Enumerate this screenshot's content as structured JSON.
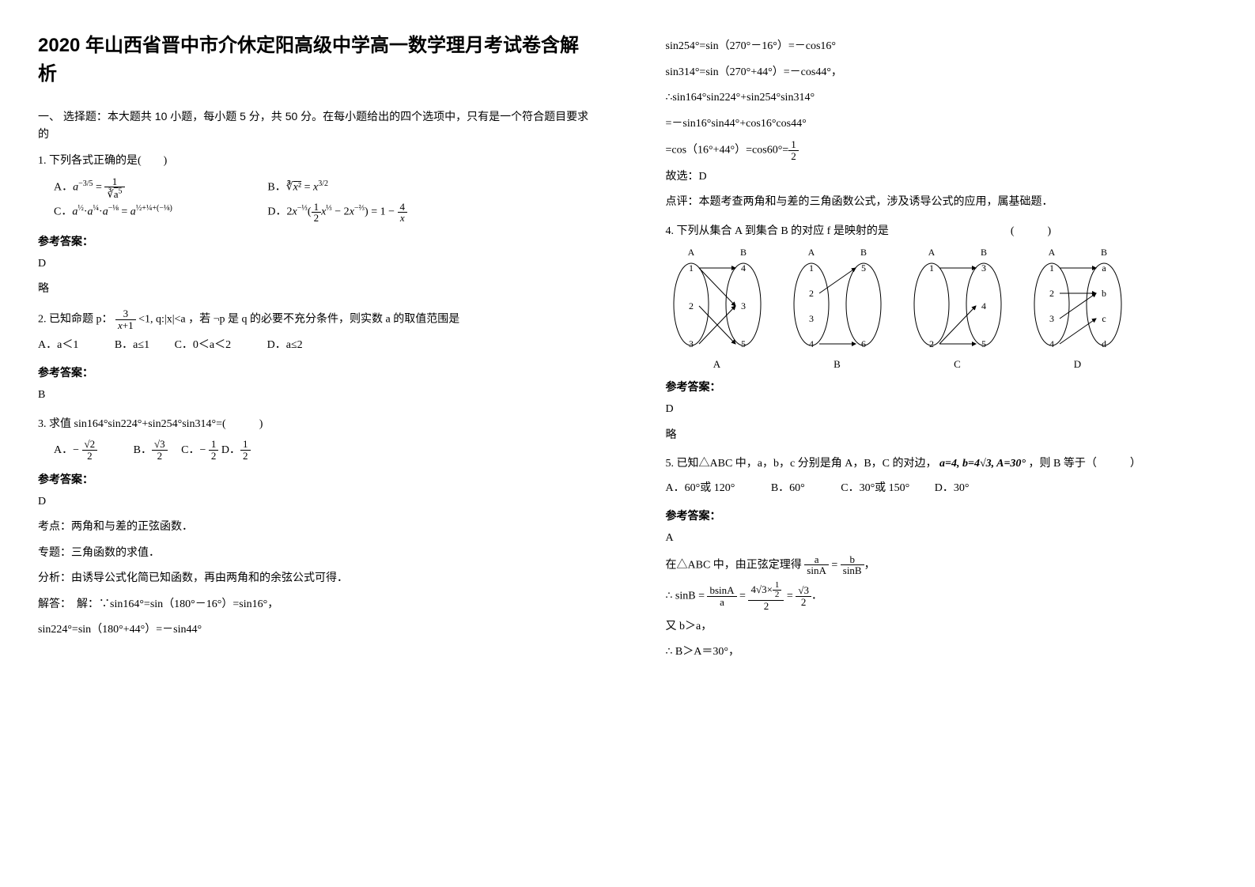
{
  "title": "2020 年山西省晋中市介休定阳高级中学高一数学理月考试卷含解析",
  "section1": "一、 选择题：本大题共 10 小题，每小题 5 分，共 50 分。在每小题给出的四个选项中，只有是一个符合题目要求的",
  "q1": {
    "stem": "1. 下列各式正确的是(　　)",
    "optA": "a^{-3/5} = 1 / ∛(a^5)",
    "optB": "∛(x²) = x^{3/2}",
    "optC": "a^{1/2}·a^{1/4}·a^{-1/8} = a^{1/2+1/4+(-1/8)}",
    "optD": "2x^{-1/3}(½x^{1/3} − 2x^{-2/3}) = 1 − 4/x",
    "answer_label": "参考答案：",
    "answer": "D",
    "expl": "略"
  },
  "q2": {
    "stem_pre": "2. 已知命题 p：",
    "stem_mid": "<1, q:|x|<a",
    "stem_post": "，若 ¬p 是 q 的必要不充分条件，则实数 a 的取值范围是",
    "optA": "A．a＜1",
    "optB": "B．a≤1",
    "optC": "C．0＜a＜2",
    "optD": "D．a≤2",
    "answer_label": "参考答案：",
    "answer": "B"
  },
  "q3": {
    "stem": "3. 求值 sin164°sin224°+sin254°sin314°=(　　　)",
    "optA": "A．−√2/2",
    "optB": "B．√3/2",
    "optC": "C．−1/2",
    "optD": "D．1/2",
    "answer_label": "参考答案：",
    "answer": "D",
    "kaodian_label": "考点：",
    "kaodian": "两角和与差的正弦函数．",
    "zhuanti_label": "专题：",
    "zhuanti": "三角函数的求值．",
    "fenxi_label": "分析：",
    "fenxi": "由诱导公式化简已知函数，再由两角和的余弦公式可得．",
    "jieda_label": "解答：",
    "jieda_lead": "解：∵sin164°=sin（180°－16°）=sin16°，",
    "line2": "sin224°=sin（180°+44°）=－sin44°",
    "line3": "sin254°=sin（270°－16°）=－cos16°",
    "line4": "sin314°=sin（270°+44°）=－cos44°，",
    "line5": "∴sin164°sin224°+sin254°sin314°",
    "line6": "=－sin16°sin44°+cos16°cos44°",
    "line7_pre": "=cos（16°+44°）=cos60°=",
    "guxuan": "故选：D",
    "dianping_label": "点评：",
    "dianping": "本题考查两角和与差的三角函数公式，涉及诱导公式的应用，属基础题．"
  },
  "q4": {
    "stem": "4. 下列从集合 A 到集合 B 的对应 f 是映射的是　　　　　　　　　　　(　　　)",
    "labels": {
      "A": "A",
      "B": "B",
      "C": "C",
      "D": "D"
    },
    "answer_label": "参考答案：",
    "answer": "D",
    "expl": "略",
    "diagrams": {
      "A": {
        "left": [
          "1",
          "2",
          "3"
        ],
        "right": [
          "4",
          "3",
          "5"
        ],
        "arrows": [
          [
            0,
            0
          ],
          [
            0,
            1
          ],
          [
            1,
            2
          ],
          [
            2,
            1
          ]
        ]
      },
      "B": {
        "left": [
          "1",
          "2",
          "3",
          "4"
        ],
        "right": [
          "5",
          "6"
        ],
        "arrows": [
          [
            1,
            0
          ],
          [
            3,
            1
          ]
        ]
      },
      "C": {
        "left": [
          "1",
          "2"
        ],
        "right": [
          "3",
          "4",
          "5"
        ],
        "arrows": [
          [
            0,
            0
          ],
          [
            1,
            1
          ],
          [
            1,
            2
          ]
        ]
      },
      "D": {
        "left": [
          "1",
          "2",
          "3",
          "4"
        ],
        "right": [
          "a",
          "b",
          "c",
          "d"
        ],
        "arrows": [
          [
            0,
            0
          ],
          [
            1,
            1
          ],
          [
            2,
            1
          ],
          [
            3,
            2
          ]
        ]
      }
    },
    "header_AB": "A　　　B",
    "svg_style": {
      "w": 130,
      "h": 140,
      "ellipse_fill": "#ffffff",
      "stroke": "#000000",
      "stroke_width": 1,
      "font_size": 12
    }
  },
  "q5": {
    "stem_pre": "5. 已知△ABC 中，a，b，c 分别是角 A，B，C 的对边，",
    "cond": "a=4, b=4√3, A=30°",
    "stem_post": "，则 B 等于（　　　）",
    "optA": "A．60°或 120°",
    "optB": "B．60°",
    "optC": "C．30°或 150°",
    "optD": "D．30°",
    "answer_label": "参考答案：",
    "answer": "A",
    "line1_pre": "在△ABC 中，由正弦定理得",
    "line2_pre": "∴ sinB =",
    "line2_mid": " = ",
    "line2_end": " = √3/2．",
    "line3": "又 b＞a，",
    "line4": "∴ B＞A＝30°，"
  }
}
